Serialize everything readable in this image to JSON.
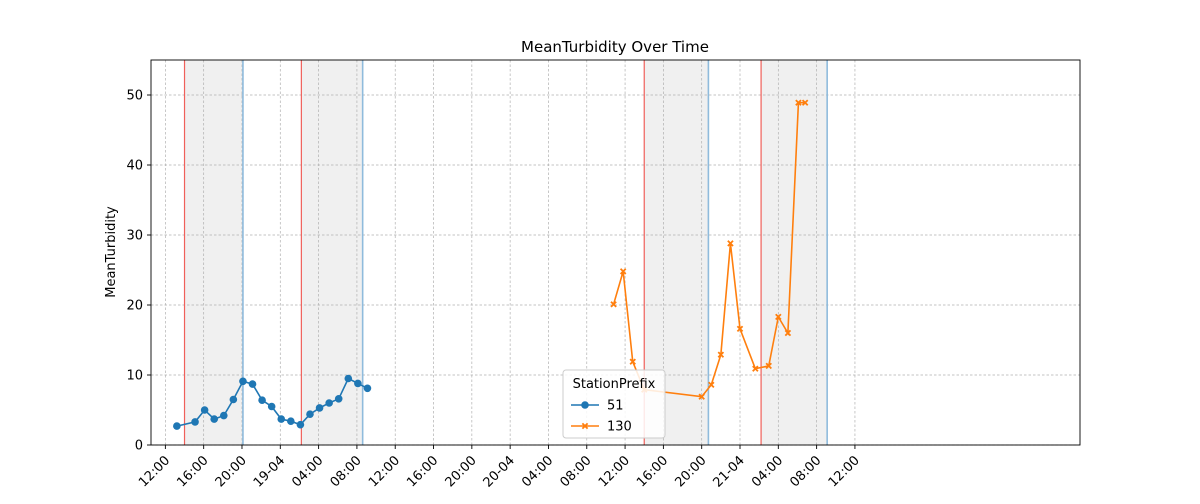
{
  "chart_data": {
    "type": "line",
    "title": "MeanTurbidity Over Time",
    "xlabel": "",
    "ylabel": "MeanTurbidity",
    "x_unit": "hours",
    "xlim": [
      -1.5,
      95.5
    ],
    "ylim": [
      0,
      55
    ],
    "y_ticks": [
      0,
      10,
      20,
      30,
      40,
      50
    ],
    "x_ticks": [
      {
        "x": 0,
        "label": "12:00"
      },
      {
        "x": 4,
        "label": "16:00"
      },
      {
        "x": 8,
        "label": "20:00"
      },
      {
        "x": 12,
        "label": "19-04"
      },
      {
        "x": 16,
        "label": "04:00"
      },
      {
        "x": 20,
        "label": "08:00"
      },
      {
        "x": 24,
        "label": "12:00"
      },
      {
        "x": 28,
        "label": "16:00"
      },
      {
        "x": 32,
        "label": "20:00"
      },
      {
        "x": 36,
        "label": "20-04"
      },
      {
        "x": 40,
        "label": "04:00"
      },
      {
        "x": 44,
        "label": "08:00"
      },
      {
        "x": 48,
        "label": "12:00"
      },
      {
        "x": 52,
        "label": "16:00"
      },
      {
        "x": 56,
        "label": "20:00"
      },
      {
        "x": 60,
        "label": "21-04"
      },
      {
        "x": 64,
        "label": "04:00"
      },
      {
        "x": 68,
        "label": "08:00"
      },
      {
        "x": 72,
        "label": "12:00"
      }
    ],
    "grid": true,
    "legend": {
      "title": "StationPrefix",
      "placement": "bottom-center"
    },
    "shaded_periods": [
      {
        "start": 2,
        "end": 8.1
      },
      {
        "start": 14.2,
        "end": 20.6
      },
      {
        "start": 50.0,
        "end": 56.7
      },
      {
        "start": 62.2,
        "end": 69.1
      }
    ],
    "series": [
      {
        "name": "51",
        "color": "#1f77b4",
        "marker": "circle",
        "x": [
          1.2,
          3.1,
          4.1,
          5.1,
          6.1,
          7.1,
          8.1,
          9.1,
          10.1,
          11.1,
          12.1,
          13.1,
          14.1,
          15.1,
          16.1,
          17.1,
          18.1,
          19.1,
          20.1,
          21.1
        ],
        "y": [
          2.7,
          3.3,
          5.0,
          3.7,
          4.2,
          6.5,
          9.1,
          8.7,
          6.4,
          5.5,
          3.7,
          3.4,
          2.9,
          4.4,
          5.3,
          6.0,
          6.6,
          9.5,
          8.8,
          8.1
        ]
      },
      {
        "name": "130",
        "color": "#ff7f0e",
        "marker": "x",
        "x": [
          46.8,
          47.8,
          48.8,
          50.0,
          56.0,
          57.0,
          58.0,
          59.0,
          60.0,
          61.6,
          63.0,
          64.0,
          65.0,
          66.1,
          66.8
        ],
        "y": [
          20.1,
          24.8,
          11.9,
          7.9,
          6.9,
          8.6,
          12.9,
          28.8,
          16.6,
          10.9,
          11.3,
          18.3,
          16.0,
          48.9,
          48.9
        ]
      }
    ]
  }
}
